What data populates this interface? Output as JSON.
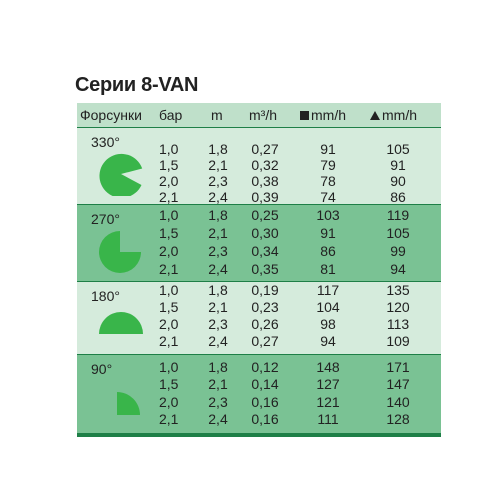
{
  "title": "Серии 8-VAN",
  "header": {
    "nozzles": "Форсунки",
    "bar": "бар",
    "m": "m",
    "flow": "m³/h",
    "square_rate": "mm/h",
    "triangle_rate": "mm/h"
  },
  "colors": {
    "border": "#1e7f47",
    "header_bg": "#bfe0ca",
    "group_light": "#d5ebdc",
    "group_dark": "#7ac294",
    "shape_fill": "#39b54a"
  },
  "groups": [
    {
      "angle": "330°",
      "shape_icon": "arc-330-icon",
      "rows": [
        [
          "1,0",
          "1,8",
          "0,27",
          "91",
          "105"
        ],
        [
          "1,5",
          "2,1",
          "0,32",
          "79",
          "91"
        ],
        [
          "2,0",
          "2,3",
          "0,38",
          "78",
          "90"
        ],
        [
          "2,1",
          "2,4",
          "0,39",
          "74",
          "86"
        ]
      ]
    },
    {
      "angle": "270°",
      "shape_icon": "arc-270-icon",
      "rows": [
        [
          "1,0",
          "1,8",
          "0,25",
          "103",
          "119"
        ],
        [
          "1,5",
          "2,1",
          "0,30",
          "91",
          "105"
        ],
        [
          "2,0",
          "2,3",
          "0,34",
          "86",
          "99"
        ],
        [
          "2,1",
          "2,4",
          "0,35",
          "81",
          "94"
        ]
      ]
    },
    {
      "angle": "180°",
      "shape_icon": "arc-180-icon",
      "rows": [
        [
          "1,0",
          "1,8",
          "0,19",
          "117",
          "135"
        ],
        [
          "1,5",
          "2,1",
          "0,23",
          "104",
          "120"
        ],
        [
          "2,0",
          "2,3",
          "0,26",
          "98",
          "113"
        ],
        [
          "2,1",
          "2,4",
          "0,27",
          "94",
          "109"
        ]
      ]
    },
    {
      "angle": "90°",
      "shape_icon": "arc-90-icon",
      "rows": [
        [
          "1,0",
          "1,8",
          "0,12",
          "148",
          "171"
        ],
        [
          "1,5",
          "2,1",
          "0,14",
          "127",
          "147"
        ],
        [
          "2,0",
          "2,3",
          "0,16",
          "121",
          "140"
        ],
        [
          "2,1",
          "2,4",
          "0,16",
          "111",
          "128"
        ]
      ]
    }
  ]
}
